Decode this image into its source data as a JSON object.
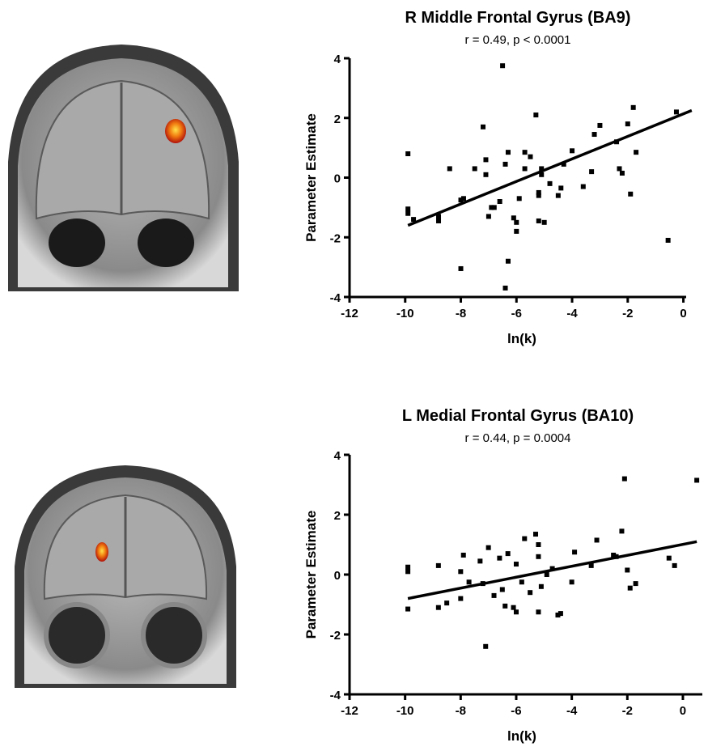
{
  "chart_data": [
    {
      "type": "scatter",
      "title": "R Middle Frontal Gyrus (BA9)",
      "subtitle": "r = 0.49, p < 0.0001",
      "x_label": "ln(k)",
      "y_label": "Parameter Estimate",
      "color": "#000000",
      "xlim": [
        -12,
        0.1
      ],
      "ylim": [
        -4,
        4
      ],
      "xticks": [
        -12,
        -10,
        -8,
        -6,
        -4,
        -2,
        0
      ],
      "yticks": [
        -4,
        -2,
        0,
        2,
        4
      ],
      "x": [
        -9.9,
        -9.9,
        -9.9,
        -9.7,
        -8.8,
        -8.8,
        -8.4,
        -8.0,
        -7.9,
        -8.0,
        -7.5,
        -7.2,
        -7.1,
        -7.1,
        -7.0,
        -6.9,
        -6.8,
        -6.6,
        -6.5,
        -6.4,
        -6.3,
        -6.4,
        -6.3,
        -6.1,
        -6.0,
        -6.0,
        -5.9,
        -5.7,
        -5.7,
        -5.5,
        -5.2,
        -5.2,
        -5.2,
        -5.0,
        -5.3,
        -5.1,
        -5.1,
        -4.8,
        -4.5,
        -4.4,
        -4.3,
        -4.0,
        -3.6,
        -3.3,
        -3.2,
        -3.0,
        -2.4,
        -2.3,
        -2.2,
        -2.0,
        -1.9,
        -1.8,
        -1.7,
        -0.55,
        -0.25
      ],
      "values": [
        0.8,
        -1.05,
        -1.2,
        -1.4,
        -1.45,
        -1.3,
        0.3,
        -0.75,
        -0.7,
        -3.05,
        0.3,
        1.7,
        0.6,
        0.1,
        -1.3,
        -1.0,
        -1.0,
        -0.8,
        3.75,
        0.45,
        -2.8,
        -3.7,
        0.85,
        -1.35,
        -1.8,
        -1.5,
        -0.7,
        0.3,
        0.85,
        0.7,
        -0.6,
        -0.5,
        -1.45,
        -1.5,
        2.1,
        0.1,
        0.3,
        -0.2,
        -0.6,
        -0.35,
        0.45,
        0.9,
        -0.3,
        0.2,
        1.45,
        1.75,
        1.2,
        0.3,
        0.15,
        1.8,
        -0.55,
        2.35,
        0.85,
        -2.1,
        2.2
      ],
      "trend": {
        "x": [
          -9.9,
          0.3
        ],
        "y": [
          -1.6,
          2.25
        ]
      }
    },
    {
      "type": "scatter",
      "title": "L Medial Frontal Gyrus (BA10)",
      "subtitle": "r = 0.44, p = 0.0004",
      "x_label": "ln(k)",
      "y_label": "Parameter Estimate",
      "color": "#000000",
      "xlim": [
        -12,
        0.7
      ],
      "ylim": [
        -4,
        4
      ],
      "xticks": [
        -12,
        -10,
        -8,
        -6,
        -4,
        -2,
        0
      ],
      "yticks": [
        -4,
        -2,
        0,
        2,
        4
      ],
      "x": [
        -9.9,
        -9.9,
        -9.9,
        -8.8,
        -8.8,
        -8.5,
        -8.0,
        -8.0,
        -7.9,
        -7.7,
        -7.3,
        -7.2,
        -7.1,
        -7.0,
        -6.8,
        -6.6,
        -6.5,
        -6.4,
        -6.3,
        -6.1,
        -6.0,
        -6.0,
        -5.8,
        -5.7,
        -5.5,
        -5.3,
        -5.2,
        -5.2,
        -5.2,
        -5.1,
        -4.9,
        -4.7,
        -4.5,
        -4.4,
        -4.0,
        -3.9,
        -3.3,
        -3.1,
        -2.5,
        -2.4,
        -2.2,
        -2.1,
        -2.0,
        -1.9,
        -1.7,
        -0.5,
        -0.3,
        0.5
      ],
      "values": [
        0.25,
        0.1,
        -1.15,
        0.3,
        -1.1,
        -0.95,
        0.1,
        -0.8,
        0.65,
        -0.25,
        0.45,
        -0.3,
        -2.4,
        0.9,
        -0.7,
        0.55,
        -0.5,
        -1.05,
        0.7,
        -1.1,
        -1.25,
        0.35,
        -0.25,
        1.2,
        -0.6,
        1.35,
        1.0,
        -1.25,
        0.6,
        -0.4,
        0.0,
        0.2,
        -1.35,
        -1.3,
        -0.25,
        0.75,
        0.3,
        1.15,
        0.65,
        0.6,
        1.45,
        3.2,
        0.15,
        -0.45,
        -0.3,
        0.55,
        0.3,
        3.15
      ],
      "trend": {
        "x": [
          -9.9,
          0.5
        ],
        "y": [
          -0.8,
          1.1
        ]
      }
    }
  ]
}
